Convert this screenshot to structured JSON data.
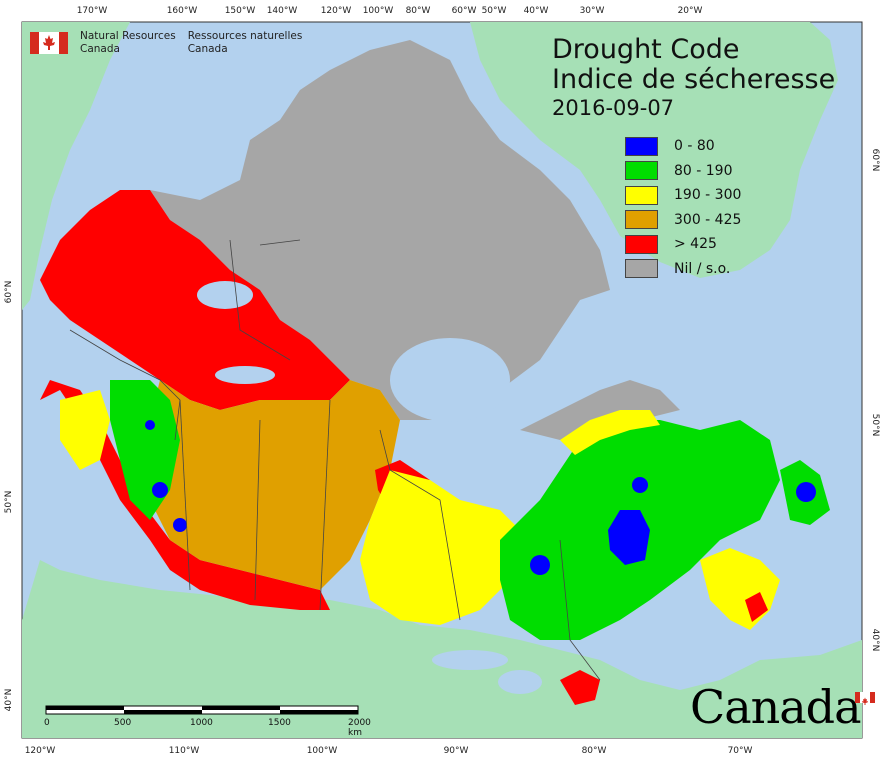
{
  "title": {
    "line1": "Drought Code",
    "line2": "Indice de sécheresse",
    "date": "2016-09-07"
  },
  "legend": [
    {
      "label": "0 - 80",
      "color": "#0000ff"
    },
    {
      "label": "80 - 190",
      "color": "#00dd00"
    },
    {
      "label": "190 - 300",
      "color": "#ffff00"
    },
    {
      "label": "300 - 425",
      "color": "#e0a000"
    },
    {
      "label": "> 425",
      "color": "#ff0000"
    },
    {
      "label": "Nil / s.o.",
      "color": "#a6a6a6"
    }
  ],
  "agency": {
    "en_line1": "Natural Resources",
    "en_line2": "Canada",
    "fr_line1": "Ressources naturelles",
    "fr_line2": "Canada",
    "wordmark": "Canada"
  },
  "graticule": {
    "top": [
      "170°W",
      "160°W",
      "150°W",
      "140°W",
      "120°W",
      "100°W",
      "80°W",
      "60°W",
      "50°W",
      "40°W",
      "30°W",
      "20°W"
    ],
    "bottom": [
      "120°W",
      "110°W",
      "100°W",
      "90°W",
      "80°W",
      "70°W"
    ],
    "left": [
      "60°N",
      "50°N",
      "40°N"
    ],
    "right": [
      "60°N",
      "50°N",
      "40°N"
    ]
  },
  "scale": {
    "ticks": [
      "0",
      "500",
      "1000",
      "1500",
      "2000 km"
    ]
  },
  "colors": {
    "ocean": "#b3d1ee",
    "land_other": "#a6e0b6",
    "nil": "#a6a6a6",
    "border": "#444444"
  }
}
